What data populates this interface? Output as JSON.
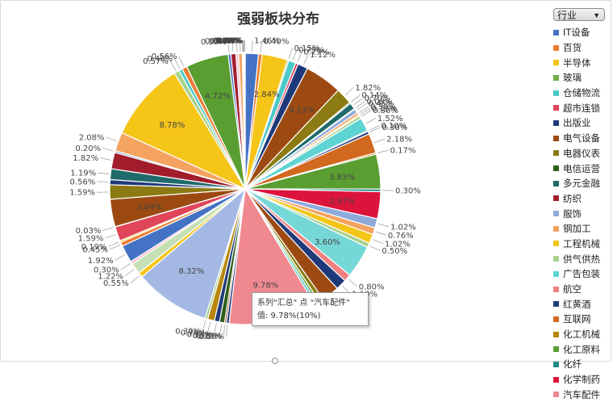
{
  "chart_data": {
    "type": "pie",
    "title": "强弱板块分布",
    "legend_position": "right",
    "filter": {
      "field": "行业",
      "arrow": "▼"
    },
    "tooltip": {
      "line1": "系列\"汇总\" 点 \"汽车配件\"",
      "line2": "值: 9.78%(10%)"
    },
    "slices": [
      {
        "label": "IT设备",
        "value": 1.46,
        "display": "1.46%",
        "color": "#4472c4"
      },
      {
        "label": "百货",
        "value": 0.4,
        "display": "0.40%",
        "color": "#ed7d31"
      },
      {
        "label": "半导体",
        "value": 2.84,
        "display": "2.84%",
        "color": "#f5c518"
      },
      {
        "label": "玻璃",
        "value": 0.15,
        "display": "0.15%",
        "color": "#70ad47"
      },
      {
        "label": "仓储物流",
        "value": 0.79,
        "display": "0.79%",
        "color": "#4bc8c8"
      },
      {
        "label": "超市连锁",
        "value": 0.29,
        "display": "0.29%",
        "color": "#e0455a"
      },
      {
        "label": "出版业",
        "value": 1.12,
        "display": "1.12%",
        "color": "#1f3a7a"
      },
      {
        "label": "电气设备",
        "value": 4.13,
        "display": "4.13%",
        "color": "#9c4a12"
      },
      {
        "label": "电器仪表",
        "value": 1.82,
        "display": "1.82%",
        "color": "#8c7a12"
      },
      {
        "label": "电信运营",
        "value": 0.14,
        "display": "0.14%",
        "color": "#2f5e18"
      },
      {
        "label": "多元金融",
        "value": 0.7,
        "display": "0.70%",
        "color": "#1f6a6a"
      },
      {
        "label": "纺织",
        "value": 0.08,
        "display": "0.08%",
        "color": "#a11d2c"
      },
      {
        "label": "服饰",
        "value": 0.45,
        "display": "0.45%",
        "color": "#8eaadb"
      },
      {
        "label": "钢加工",
        "value": 0.3,
        "display": "0.30%",
        "color": "#f4a460"
      },
      {
        "label": "工程机械",
        "value": 0.15,
        "display": "0.15%",
        "color": "#f5c518"
      },
      {
        "label": "供气供热",
        "value": 0.3,
        "display": "0.30%",
        "color": "#a9d18e"
      },
      {
        "label": "广告包装",
        "value": 1.52,
        "display": "1.52%",
        "color": "#5ed3d3"
      },
      {
        "label": "航空",
        "value": 0.1,
        "display": "0.10%",
        "color": "#f08080"
      },
      {
        "label": "红黄酒",
        "value": 0.3,
        "display": "0.30%",
        "color": "#1f3a7a"
      },
      {
        "label": "互联网",
        "value": 2.18,
        "display": "2.18%",
        "color": "#d2691e"
      },
      {
        "label": "化工机械",
        "value": 0.17,
        "display": "0.17%",
        "color": "#b8860b"
      },
      {
        "label": "化工原料",
        "value": 3.83,
        "display": "3.83%",
        "color": "#5a9e32"
      },
      {
        "label": "化纤",
        "value": 0.3,
        "display": "0.30%",
        "color": "#208888"
      },
      {
        "label": "化学制药",
        "value": 2.97,
        "display": "2.97%",
        "color": "#dc143c"
      },
      {
        "label": "",
        "value": 1.02,
        "display": "1.02%",
        "color": "#8eaadb"
      },
      {
        "label": "",
        "value": 0.76,
        "display": "0.76%",
        "color": "#f4a460"
      },
      {
        "label": "",
        "value": 1.02,
        "display": "1.02%",
        "color": "#f5c518"
      },
      {
        "label": "",
        "value": 0.5,
        "display": "0.50%",
        "color": "#a9d18e"
      },
      {
        "label": "",
        "value": 3.6,
        "display": "3.60%",
        "color": "#76d7d7"
      },
      {
        "label": "",
        "value": 0.8,
        "display": "0.80%",
        "color": "#f08080"
      },
      {
        "label": "",
        "value": 1.19,
        "display": "1.19%",
        "color": "#1f3a7a"
      },
      {
        "label": "",
        "value": 1.92,
        "display": "1.92%",
        "color": "#9c4a12"
      },
      {
        "label": "",
        "value": 0.5,
        "display": "0.50%",
        "color": "#8c7a12"
      },
      {
        "label": "",
        "value": 0.3,
        "display": "0.30%",
        "color": "#70ad47"
      },
      {
        "label": "",
        "value": 0.3,
        "display": "0.30%",
        "color": "#4bc8c8"
      },
      {
        "label": "汽车配件",
        "value": 9.78,
        "display": "9.78%",
        "color": "#f08890"
      },
      {
        "label": "",
        "value": 0.3,
        "display": "0.30%",
        "color": "#1f3a7a"
      },
      {
        "label": "",
        "value": 0.2,
        "display": "0.20%",
        "color": "#9c4a12"
      },
      {
        "label": "",
        "value": 0.56,
        "display": "0.56%",
        "color": "#2f5e18"
      },
      {
        "label": "",
        "value": 0.57,
        "display": "0.57%",
        "color": "#1f3a7a"
      },
      {
        "label": "",
        "value": 0.76,
        "display": "0.76%",
        "color": "#b8860b"
      },
      {
        "label": "",
        "value": 0.3,
        "display": "0.30%",
        "color": "#a9d18e"
      },
      {
        "label": "",
        "value": 8.32,
        "display": "8.32%",
        "color": "#a4b8e4"
      },
      {
        "label": "",
        "value": 0.55,
        "display": "0.55%",
        "color": "#f5c518"
      },
      {
        "label": "",
        "value": 1.22,
        "display": "1.22%",
        "color": "#c5e0b4"
      },
      {
        "label": "",
        "value": 0.3,
        "display": "0.30%",
        "color": "#ffc0cb"
      },
      {
        "label": "",
        "value": 1.92,
        "display": "1.92%",
        "color": "#4472c4"
      },
      {
        "label": "",
        "value": 0.45,
        "display": "0.45%",
        "color": "#ed7d31"
      },
      {
        "label": "",
        "value": 0.19,
        "display": "0.19%",
        "color": "#f5c518"
      },
      {
        "label": "",
        "value": 1.59,
        "display": "1.59%",
        "color": "#e0455a"
      },
      {
        "label": "",
        "value": 0.03,
        "display": "0.03%",
        "color": "#70ad47"
      },
      {
        "label": "",
        "value": 3.04,
        "display": "3.04%",
        "color": "#9c4a12"
      },
      {
        "label": "",
        "value": 1.59,
        "display": "1.59%",
        "color": "#8c7a12"
      },
      {
        "label": "",
        "value": 0.56,
        "display": "0.56%",
        "color": "#1f3a7a"
      },
      {
        "label": "",
        "value": 1.19,
        "display": "1.19%",
        "color": "#1f6a6a"
      },
      {
        "label": "",
        "value": 1.82,
        "display": "1.82%",
        "color": "#a11d2c"
      },
      {
        "label": "",
        "value": 0.2,
        "display": "0.20%",
        "color": "#8eaadb"
      },
      {
        "label": "",
        "value": 2.08,
        "display": "2.08%",
        "color": "#f4a460"
      },
      {
        "label": "",
        "value": 8.78,
        "display": "8.78%",
        "color": "#f5c518"
      },
      {
        "label": "",
        "value": 0.57,
        "display": "0.57%",
        "color": "#a9d18e"
      },
      {
        "label": "",
        "value": 0.4,
        "display": "0.40%",
        "color": "#4bc8c8"
      },
      {
        "label": "",
        "value": 0.56,
        "display": "0.56%",
        "color": "#ed7d31"
      },
      {
        "label": "",
        "value": 4.72,
        "display": "4.72%",
        "color": "#5a9e32"
      },
      {
        "label": "",
        "value": 0.3,
        "display": "0.30%",
        "color": "#4472c4"
      },
      {
        "label": "",
        "value": 0.55,
        "display": "0.55%",
        "color": "#a11d2c"
      },
      {
        "label": "",
        "value": 0.3,
        "display": "0.30%",
        "color": "#ffc0cb"
      },
      {
        "label": "",
        "value": 0.4,
        "display": "0.40%",
        "color": "#f4a460"
      },
      {
        "label": "",
        "value": 0.08,
        "display": "0.08%",
        "color": "#b8860b"
      },
      {
        "label": "",
        "value": 0.08,
        "display": "0.08%",
        "color": "#4bc8c8"
      },
      {
        "label": "",
        "value": 0.08,
        "display": "0.08%",
        "color": "#1f3a7a"
      },
      {
        "label": "",
        "value": 0.08,
        "display": "0.08%",
        "color": "#e0455a"
      }
    ]
  }
}
